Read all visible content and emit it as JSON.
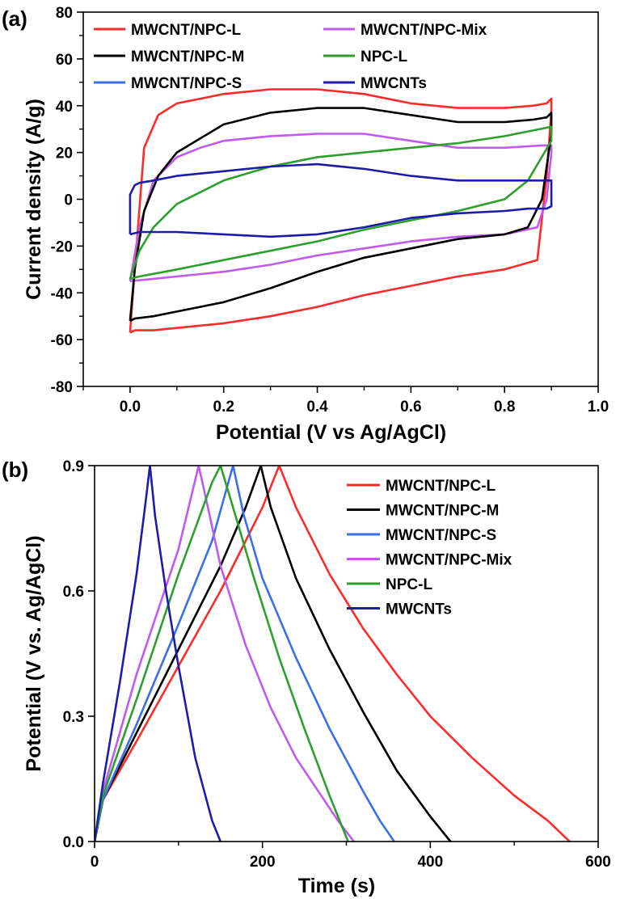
{
  "chart_data": [
    {
      "panel_label": "(a)",
      "type": "line",
      "xlabel": "Potential (V vs Ag/AgCl)",
      "ylabel": "Current density (A/g)",
      "xlim": [
        -0.1,
        1.0
      ],
      "ylim": [
        -80,
        80
      ],
      "x_ticks": [
        0.0,
        0.2,
        0.4,
        0.6,
        0.8,
        1.0
      ],
      "x_tick_labels": [
        "0.0",
        "0.2",
        "0.4",
        "0.6",
        "0.8",
        "1.0"
      ],
      "y_ticks": [
        -80,
        -60,
        -40,
        -20,
        0,
        20,
        40,
        60,
        80
      ],
      "y_tick_labels": [
        "-80",
        "-60",
        "-40",
        "-20",
        "0",
        "20",
        "40",
        "60",
        "80"
      ],
      "legend": "top, two columns",
      "series": [
        {
          "name": "MWCNT/NPC-L",
          "color": "#ff2a2a",
          "x": [
            0.0,
            0.01,
            0.03,
            0.06,
            0.1,
            0.2,
            0.3,
            0.4,
            0.5,
            0.6,
            0.7,
            0.8,
            0.86,
            0.89,
            0.9,
            0.9,
            0.89,
            0.87,
            0.8,
            0.7,
            0.6,
            0.5,
            0.4,
            0.3,
            0.2,
            0.1,
            0.05,
            0.01,
            0.0,
            0.0
          ],
          "y": [
            -57,
            -30,
            22,
            36,
            41,
            45,
            47,
            47,
            45,
            41,
            39,
            39,
            40,
            41,
            43,
            38,
            10,
            -26,
            -30,
            -33,
            -37,
            -41,
            -46,
            -50,
            -53,
            -55,
            -56,
            -56,
            -57,
            -57
          ]
        },
        {
          "name": "MWCNT/NPC-Mix",
          "color": "#c05af0",
          "x": [
            0.0,
            0.02,
            0.05,
            0.1,
            0.15,
            0.2,
            0.3,
            0.4,
            0.5,
            0.6,
            0.7,
            0.8,
            0.88,
            0.9,
            0.9,
            0.89,
            0.87,
            0.8,
            0.7,
            0.6,
            0.5,
            0.4,
            0.3,
            0.2,
            0.1,
            0.05,
            0.0,
            0.0
          ],
          "y": [
            -35,
            -12,
            8,
            18,
            22,
            25,
            27,
            28,
            28,
            25,
            22,
            22,
            23,
            23,
            20,
            0,
            -12,
            -15,
            -16,
            -18,
            -21,
            -24,
            -28,
            -31,
            -33,
            -34,
            -35,
            -35
          ]
        },
        {
          "name": "MWCNT/NPC-M",
          "color": "#000000",
          "x": [
            0.0,
            0.01,
            0.03,
            0.06,
            0.1,
            0.2,
            0.3,
            0.4,
            0.5,
            0.6,
            0.7,
            0.8,
            0.86,
            0.89,
            0.9,
            0.9,
            0.88,
            0.85,
            0.8,
            0.7,
            0.6,
            0.5,
            0.4,
            0.3,
            0.2,
            0.1,
            0.05,
            0.01,
            0.0
          ],
          "y": [
            -52,
            -30,
            -5,
            10,
            20,
            32,
            37,
            39,
            39,
            36,
            33,
            33,
            34,
            35,
            37,
            28,
            0,
            -12,
            -15,
            -17,
            -21,
            -25,
            -31,
            -38,
            -44,
            -48,
            -50,
            -51,
            -52
          ]
        },
        {
          "name": "NPC-L",
          "color": "#2ca02c",
          "x": [
            0.0,
            0.02,
            0.05,
            0.1,
            0.2,
            0.3,
            0.4,
            0.5,
            0.6,
            0.7,
            0.8,
            0.85,
            0.9,
            0.9,
            0.85,
            0.8,
            0.7,
            0.6,
            0.5,
            0.4,
            0.3,
            0.2,
            0.1,
            0.02,
            0.0
          ],
          "y": [
            -34,
            -22,
            -12,
            -2,
            8,
            14,
            18,
            20,
            22,
            24,
            27,
            29,
            31,
            25,
            8,
            0,
            -5,
            -9,
            -13,
            -18,
            -22,
            -26,
            -30,
            -33,
            -34
          ]
        },
        {
          "name": "MWCNT/NPC-S",
          "color": "#3a6fe8",
          "x": [],
          "y": []
        },
        {
          "name": "MWCNTs",
          "color": "#1c1ca8",
          "x": [
            0.0,
            0.0,
            0.01,
            0.02,
            0.05,
            0.1,
            0.2,
            0.3,
            0.4,
            0.5,
            0.6,
            0.7,
            0.8,
            0.88,
            0.9,
            0.9,
            0.89,
            0.85,
            0.8,
            0.7,
            0.6,
            0.5,
            0.4,
            0.3,
            0.2,
            0.1,
            0.02,
            0.0
          ],
          "y": [
            -15,
            2,
            6,
            7,
            8,
            10,
            12,
            14,
            15,
            13,
            10,
            8,
            8,
            8,
            8,
            -3,
            -4,
            -4,
            -5,
            -6,
            -8,
            -12,
            -15,
            -16,
            -15,
            -14,
            -14,
            -15
          ]
        }
      ]
    },
    {
      "panel_label": "(b)",
      "type": "line",
      "xlabel": "Time (s)",
      "ylabel": "Potential (V vs. Ag/AgCl)",
      "xlim": [
        0,
        600
      ],
      "ylim": [
        0.0,
        0.9
      ],
      "x_ticks": [
        0,
        200,
        400,
        600
      ],
      "x_tick_labels": [
        "0",
        "200",
        "400",
        "600"
      ],
      "y_ticks": [
        0.0,
        0.3,
        0.6,
        0.9
      ],
      "y_tick_labels": [
        "0.0",
        "0.3",
        "0.6",
        "0.9"
      ],
      "legend": "top-right",
      "series": [
        {
          "name": "MWCNT/NPC-L",
          "color": "#ff2a2a",
          "x": [
            0,
            10,
            50,
            100,
            150,
            200,
            220,
            240,
            280,
            320,
            360,
            400,
            450,
            500,
            540,
            566
          ],
          "y": [
            0.0,
            0.1,
            0.24,
            0.42,
            0.6,
            0.8,
            0.9,
            0.8,
            0.64,
            0.51,
            0.4,
            0.3,
            0.2,
            0.11,
            0.05,
            0.0
          ]
        },
        {
          "name": "MWCNT/NPC-M",
          "color": "#000000",
          "x": [
            0,
            10,
            50,
            100,
            150,
            180,
            198,
            210,
            240,
            280,
            320,
            360,
            400,
            424
          ],
          "y": [
            0.0,
            0.1,
            0.26,
            0.46,
            0.66,
            0.8,
            0.9,
            0.8,
            0.63,
            0.46,
            0.31,
            0.17,
            0.06,
            0.0
          ]
        },
        {
          "name": "MWCNT/NPC-S",
          "color": "#3a6fe8",
          "x": [
            0,
            10,
            50,
            100,
            140,
            165,
            178,
            200,
            240,
            280,
            320,
            340,
            357
          ],
          "y": [
            0.0,
            0.1,
            0.28,
            0.52,
            0.72,
            0.9,
            0.78,
            0.63,
            0.44,
            0.27,
            0.12,
            0.05,
            0.0
          ]
        },
        {
          "name": "MWCNT/NPC-Mix",
          "color": "#c05af0",
          "x": [
            0,
            10,
            50,
            100,
            124,
            135,
            150,
            180,
            210,
            240,
            270,
            290,
            309
          ],
          "y": [
            0.0,
            0.12,
            0.4,
            0.7,
            0.9,
            0.8,
            0.66,
            0.47,
            0.32,
            0.2,
            0.11,
            0.05,
            0.0
          ]
        },
        {
          "name": "NPC-L",
          "color": "#2ca02c",
          "x": [
            0,
            10,
            50,
            100,
            140,
            150,
            165,
            190,
            220,
            250,
            280,
            302
          ],
          "y": [
            0.0,
            0.11,
            0.34,
            0.64,
            0.86,
            0.9,
            0.8,
            0.63,
            0.44,
            0.27,
            0.11,
            0.0
          ]
        },
        {
          "name": "MWCNTs",
          "color": "#1c1ca8",
          "x": [
            0,
            10,
            30,
            50,
            60,
            66,
            72,
            85,
            100,
            120,
            140,
            150
          ],
          "y": [
            0.0,
            0.14,
            0.38,
            0.64,
            0.8,
            0.9,
            0.78,
            0.6,
            0.42,
            0.2,
            0.05,
            0.0
          ]
        }
      ]
    }
  ]
}
